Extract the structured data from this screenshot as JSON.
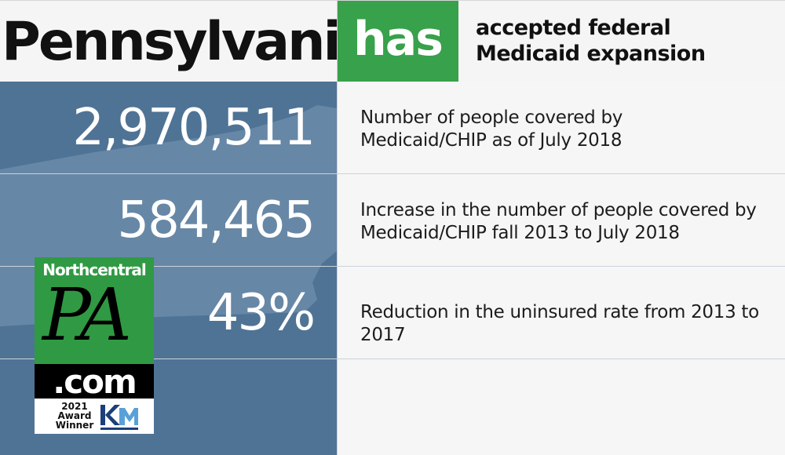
{
  "header": {
    "state_name": "Pennsylvania",
    "status_word": "has",
    "status_line1": "accepted federal",
    "status_line2": "Medicaid expansion"
  },
  "stats": [
    {
      "value": "2,970,511",
      "line1": "Number of people covered by",
      "line2": "Medicaid/CHIP as of July 2018"
    },
    {
      "value": "584,465",
      "line1": "Increase in the number of people covered by",
      "line2": "Medicaid/CHIP fall 2013 to July 2018"
    },
    {
      "value": "43%",
      "line1": "Reduction in the uninsured rate from 2013 to 2017",
      "line2": ""
    }
  ],
  "logo": {
    "brand_top": "Northcentral",
    "brand_big": "PA",
    "brand_suffix": ".com",
    "award_year": "2021",
    "award_line1": "Award",
    "award_line2": "Winner"
  },
  "colors": {
    "accent_green": "#38a14b",
    "panel_blue": "#4f7395",
    "map_shape": "#6787a6"
  }
}
